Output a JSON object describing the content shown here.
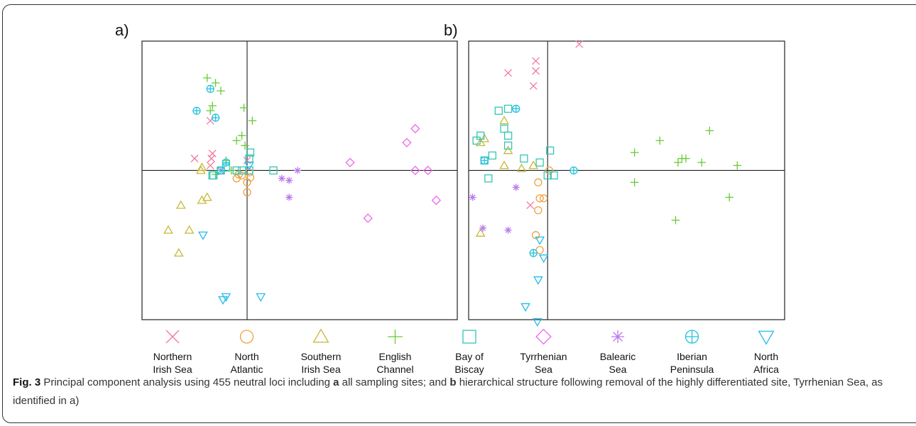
{
  "chart_data": [
    {
      "type": "scatter",
      "panel_label": "a)",
      "xlim": [
        -1,
        2
      ],
      "ylim": [
        -1.5,
        1.3
      ],
      "series": [
        {
          "key": "nis",
          "points": [
            [
              -0.35,
              0.5
            ],
            [
              -0.5,
              0.12
            ],
            [
              -0.33,
              0.17
            ],
            [
              -0.34,
              0.12
            ],
            [
              -0.35,
              0.05
            ],
            [
              -0.25,
              0.0
            ],
            [
              0.0,
              0.1
            ]
          ]
        },
        {
          "key": "na",
          "points": [
            [
              0.0,
              -0.12
            ],
            [
              0.0,
              -0.22
            ],
            [
              -0.1,
              -0.08
            ],
            [
              -0.08,
              -0.04
            ],
            [
              0.02,
              -0.02
            ],
            [
              0.03,
              -0.07
            ],
            [
              -0.05,
              -0.05
            ]
          ]
        },
        {
          "key": "sis",
          "points": [
            [
              -0.43,
              -0.3
            ],
            [
              -0.38,
              -0.27
            ],
            [
              -0.75,
              -0.6
            ],
            [
              -0.55,
              -0.6
            ],
            [
              -0.65,
              -0.83
            ],
            [
              -0.63,
              -0.35
            ],
            [
              -0.43,
              0.03
            ],
            [
              -0.44,
              0.0
            ]
          ]
        },
        {
          "key": "ec",
          "points": [
            [
              -0.38,
              0.93
            ],
            [
              -0.3,
              0.88
            ],
            [
              -0.25,
              0.8
            ],
            [
              -0.33,
              0.65
            ],
            [
              -0.35,
              0.6
            ],
            [
              -0.03,
              0.63
            ],
            [
              0.05,
              0.5
            ],
            [
              -0.05,
              0.35
            ],
            [
              -0.1,
              0.3
            ],
            [
              -0.02,
              0.25
            ],
            [
              -0.2,
              0.1
            ],
            [
              -0.15,
              0.0
            ],
            [
              -0.3,
              -0.04
            ]
          ]
        },
        {
          "key": "bob",
          "points": [
            [
              -0.33,
              -0.05
            ],
            [
              -0.32,
              -0.05
            ],
            [
              -0.25,
              0.0
            ],
            [
              -0.2,
              0.03
            ],
            [
              -0.1,
              0.0
            ],
            [
              -0.05,
              0.0
            ],
            [
              0.02,
              0.0
            ],
            [
              0.02,
              0.12
            ],
            [
              0.03,
              0.18
            ],
            [
              0.25,
              0.0
            ]
          ]
        },
        {
          "key": "tyr",
          "points": [
            [
              0.98,
              0.08
            ],
            [
              1.15,
              -0.48
            ],
            [
              1.52,
              0.28
            ],
            [
              1.6,
              0.42
            ],
            [
              1.6,
              0.0
            ],
            [
              1.72,
              0.0
            ],
            [
              1.8,
              -0.3
            ]
          ]
        },
        {
          "key": "bal",
          "points": [
            [
              0.33,
              -0.08
            ],
            [
              0.4,
              -0.1
            ],
            [
              0.4,
              -0.27
            ],
            [
              0.48,
              0.0
            ]
          ]
        },
        {
          "key": "ib",
          "points": [
            [
              -0.35,
              0.82
            ],
            [
              -0.48,
              0.6
            ],
            [
              -0.3,
              0.53
            ],
            [
              -0.25,
              0.0
            ],
            [
              -0.2,
              0.08
            ]
          ]
        },
        {
          "key": "naf",
          "points": [
            [
              -0.42,
              -0.65
            ],
            [
              -0.23,
              -1.3
            ],
            [
              -0.2,
              -1.27
            ],
            [
              0.13,
              -1.27
            ],
            [
              0.02,
              0.05
            ]
          ]
        }
      ]
    },
    {
      "type": "scatter",
      "panel_label": "b)",
      "xlim": [
        -1,
        3
      ],
      "ylim": [
        -1.5,
        1.3
      ],
      "series": [
        {
          "key": "nis",
          "points": [
            [
              -0.5,
              0.98
            ],
            [
              -0.15,
              1.1
            ],
            [
              -0.15,
              1.0
            ],
            [
              -0.18,
              0.85
            ],
            [
              0.4,
              1.27
            ],
            [
              -0.22,
              -0.35
            ]
          ]
        },
        {
          "key": "na",
          "points": [
            [
              0.02,
              0.0
            ],
            [
              -0.12,
              -0.12
            ],
            [
              -0.1,
              -0.28
            ],
            [
              -0.05,
              -0.28
            ],
            [
              -0.12,
              -0.4
            ],
            [
              -0.1,
              -0.8
            ],
            [
              -0.15,
              -0.65
            ]
          ]
        },
        {
          "key": "sis",
          "points": [
            [
              -0.85,
              -0.63
            ],
            [
              -0.85,
              0.28
            ],
            [
              -0.8,
              0.32
            ],
            [
              -0.55,
              0.5
            ],
            [
              -0.5,
              0.2
            ],
            [
              -0.55,
              0.05
            ],
            [
              -0.33,
              0.02
            ],
            [
              -0.18,
              0.05
            ]
          ]
        },
        {
          "key": "ec",
          "points": [
            [
              1.1,
              0.18
            ],
            [
              1.1,
              -0.12
            ],
            [
              1.42,
              0.3
            ],
            [
              1.65,
              0.08
            ],
            [
              1.7,
              0.12
            ],
            [
              1.75,
              0.12
            ],
            [
              1.62,
              -0.5
            ],
            [
              1.95,
              0.08
            ],
            [
              2.05,
              0.4
            ],
            [
              2.4,
              0.05
            ],
            [
              2.3,
              -0.27
            ]
          ]
        },
        {
          "key": "bob",
          "points": [
            [
              -0.75,
              -0.08
            ],
            [
              -0.8,
              0.1
            ],
            [
              -0.7,
              0.15
            ],
            [
              -0.9,
              0.3
            ],
            [
              -0.85,
              0.35
            ],
            [
              -0.62,
              0.6
            ],
            [
              -0.55,
              0.42
            ],
            [
              -0.5,
              0.62
            ],
            [
              -0.5,
              0.35
            ],
            [
              -0.5,
              0.25
            ],
            [
              -0.3,
              0.12
            ],
            [
              -0.1,
              0.08
            ],
            [
              0.0,
              -0.05
            ],
            [
              0.08,
              -0.05
            ],
            [
              0.03,
              0.2
            ]
          ]
        },
        {
          "key": "bal",
          "points": [
            [
              -0.95,
              -0.27
            ],
            [
              -0.82,
              -0.58
            ],
            [
              -0.5,
              -0.6
            ],
            [
              -0.4,
              -0.17
            ]
          ]
        },
        {
          "key": "ib",
          "points": [
            [
              -0.4,
              0.62
            ],
            [
              -0.8,
              0.1
            ],
            [
              -0.18,
              -0.83
            ],
            [
              0.33,
              0.0
            ]
          ]
        },
        {
          "key": "naf",
          "points": [
            [
              -0.1,
              -0.7
            ],
            [
              -0.05,
              -0.88
            ],
            [
              -0.12,
              -1.1
            ],
            [
              -0.28,
              -1.37
            ],
            [
              -0.13,
              -1.52
            ]
          ]
        }
      ]
    }
  ],
  "legend": [
    {
      "key": "nis",
      "marker": "x",
      "color": "#f47a9c",
      "line1": "Northern",
      "line2": "Irish Sea"
    },
    {
      "key": "na",
      "marker": "circle",
      "color": "#f0a040",
      "line1": "North",
      "line2": "Atlantic"
    },
    {
      "key": "sis",
      "marker": "triangle",
      "color": "#c8b838",
      "line1": "Southern",
      "line2": "Irish Sea"
    },
    {
      "key": "ec",
      "marker": "plus",
      "color": "#66cc33",
      "line1": "English",
      "line2": "Channel"
    },
    {
      "key": "bob",
      "marker": "square",
      "color": "#33c6b4",
      "line1": "Bay of",
      "line2": "Biscay"
    },
    {
      "key": "tyr",
      "marker": "diamond",
      "color": "#ee66ee",
      "line1": "Tyrrhenian",
      "line2": "Sea"
    },
    {
      "key": "bal",
      "marker": "asterisk",
      "color": "#bb77ee",
      "line1": "Balearic",
      "line2": "Sea"
    },
    {
      "key": "ib",
      "marker": "circleplus",
      "color": "#22c2dd",
      "line1": "Iberian",
      "line2": "Peninsula"
    },
    {
      "key": "naf",
      "marker": "invtriangle",
      "color": "#22bbee",
      "line1": "North",
      "line2": "Africa"
    }
  ],
  "caption": {
    "fig_label": "Fig. 3",
    "part1": " Principal component analysis using 455 neutral loci including ",
    "bold_a": "a",
    "part2": " all sampling sites; and ",
    "bold_b": "b",
    "part3": " hierarchical structure following removal of the highly differentiated site, Tyrrhenian Sea, as identified in a)"
  }
}
